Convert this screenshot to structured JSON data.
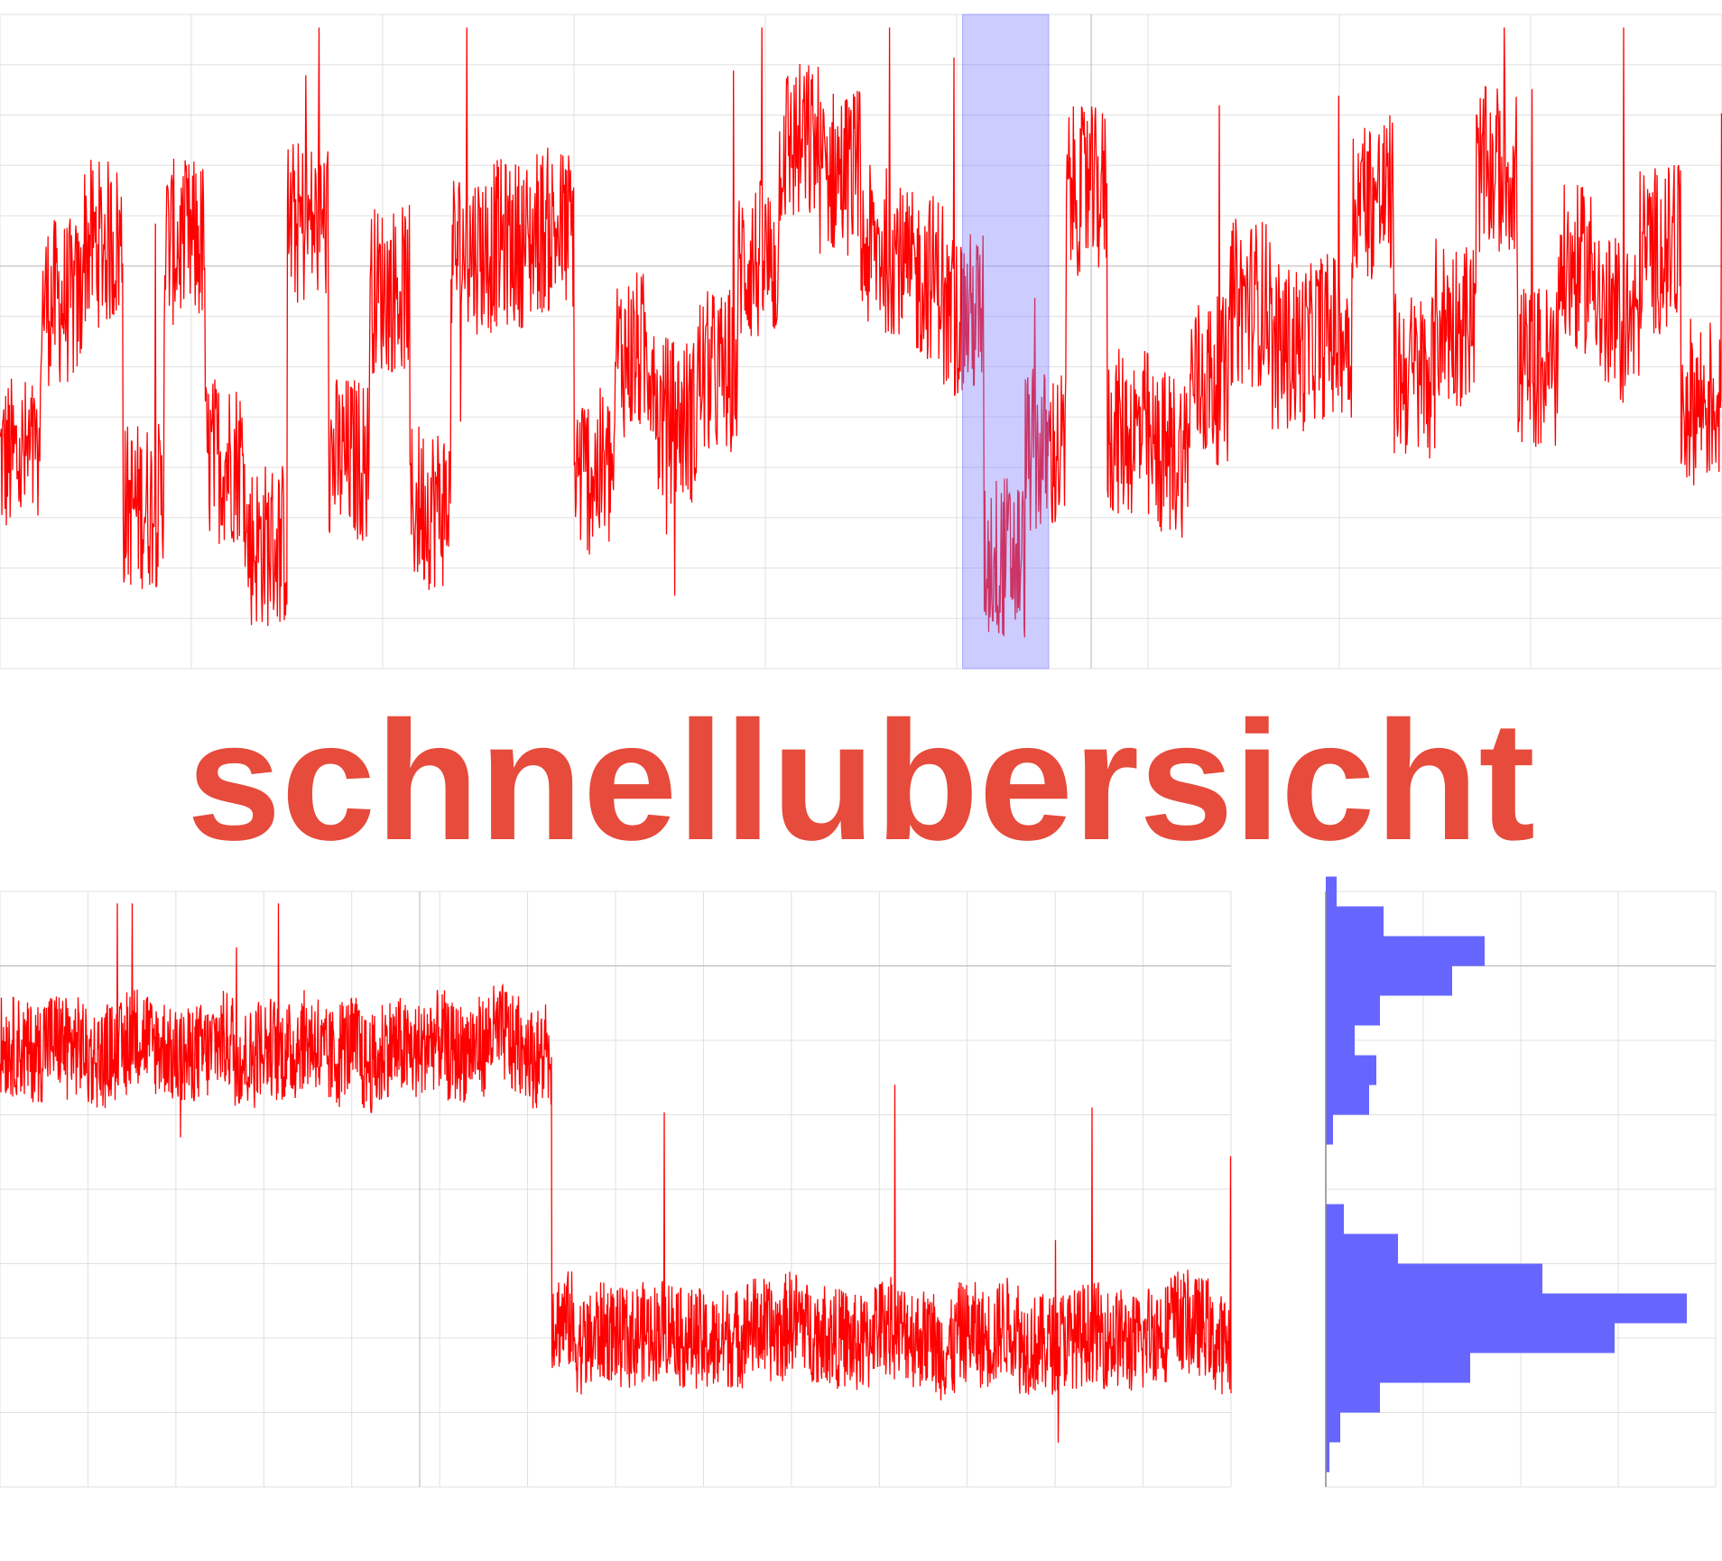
{
  "title": "schnellubersicht",
  "colors": {
    "trace": "#ff0000",
    "title": "#e64b3c",
    "selection": "#8080ff",
    "histogram": "#6666ff",
    "grid": "#e0e0e0",
    "grid_major": "#b4b4b4",
    "background": "#ffffff"
  },
  "chart_data": [
    {
      "type": "line",
      "title": "",
      "xlabel": "",
      "ylabel": "",
      "x_range": [
        0,
        1
      ],
      "y_range": [
        0,
        1
      ],
      "grid": true,
      "legend": "none",
      "series": [
        {
          "values": [
            0.32,
            0.56,
            0.65,
            0.25,
            0.65,
            0.32,
            0.19,
            0.68,
            0.32,
            0.58,
            0.25,
            0.64,
            0.65,
            0.67,
            0.3,
            0.48,
            0.38,
            0.45,
            0.62,
            0.8,
            0.76,
            0.64,
            0.6,
            0.54,
            0.17,
            0.33,
            0.73,
            0.36,
            0.33,
            0.44,
            0.56,
            0.49,
            0.51,
            0.72,
            0.45,
            0.53,
            0.76,
            0.46,
            0.61,
            0.53,
            0.64,
            0.41
          ]
        }
      ],
      "selection": {
        "x_start": 0.559,
        "x_end": 0.609
      }
    },
    {
      "type": "line",
      "title": "",
      "xlabel": "",
      "ylabel": "",
      "x_range": [
        0,
        1
      ],
      "y_range": [
        0,
        1
      ],
      "grid": true,
      "legend": "none",
      "series": [
        {
          "values": [
            0.74,
            0.73,
            0.75,
            0.74,
            0.72,
            0.73,
            0.76,
            0.74,
            0.72,
            0.73,
            0.75,
            0.72,
            0.74,
            0.73,
            0.75,
            0.72,
            0.74,
            0.71,
            0.74,
            0.73,
            0.75,
            0.73,
            0.74,
            0.76,
            0.74,
            0.72,
            0.28,
            0.24,
            0.26,
            0.25,
            0.26,
            0.27,
            0.25,
            0.24,
            0.25,
            0.27,
            0.26,
            0.28,
            0.26,
            0.25,
            0.24,
            0.27,
            0.26,
            0.25,
            0.23,
            0.26,
            0.25,
            0.27,
            0.24,
            0.24,
            0.25,
            0.26,
            0.25,
            0.24,
            0.26,
            0.28,
            0.27,
            0.24
          ]
        }
      ]
    },
    {
      "type": "bar",
      "orientation": "horizontal",
      "title": "",
      "xlabel": "",
      "ylabel": "",
      "categories": [
        0.0,
        0.05,
        0.1,
        0.15,
        0.2,
        0.25,
        0.3,
        0.35,
        0.4,
        0.45,
        0.5,
        0.55,
        0.6,
        0.65,
        0.7,
        0.75,
        0.8,
        0.85,
        0.9,
        0.95,
        1.0
      ],
      "values": [
        0,
        0.01,
        0.04,
        0.15,
        0.4,
        0.8,
        1.0,
        0.6,
        0.2,
        0.05,
        0.0,
        0.0,
        0.02,
        0.12,
        0.14,
        0.08,
        0.15,
        0.35,
        0.44,
        0.16,
        0.03
      ],
      "grid": true,
      "legend": "none"
    }
  ]
}
